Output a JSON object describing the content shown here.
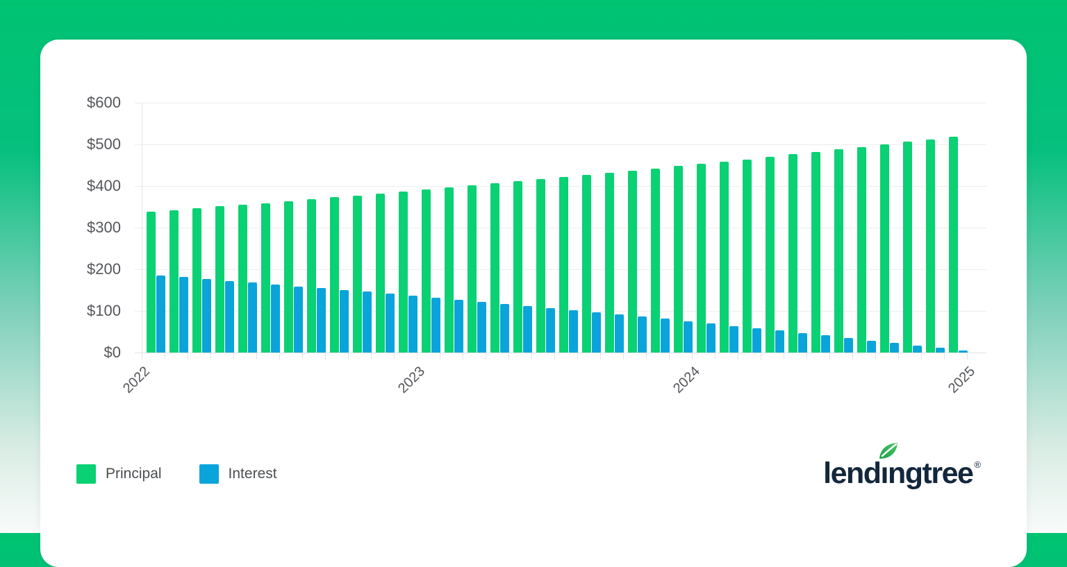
{
  "page": {
    "background_top_color": "#00c372",
    "background_bottom_color": "#f9fbfa",
    "card_color": "#ffffff"
  },
  "chart_data": {
    "type": "bar",
    "title": "",
    "x_months": [
      "2022-01",
      "2022-02",
      "2022-03",
      "2022-04",
      "2022-05",
      "2022-06",
      "2022-07",
      "2022-08",
      "2022-09",
      "2022-10",
      "2022-11",
      "2022-12",
      "2023-01",
      "2023-02",
      "2023-03",
      "2023-04",
      "2023-05",
      "2023-06",
      "2023-07",
      "2023-08",
      "2023-09",
      "2023-10",
      "2023-11",
      "2023-12",
      "2024-01",
      "2024-02",
      "2024-03",
      "2024-04",
      "2024-05",
      "2024-06",
      "2024-07",
      "2024-08",
      "2024-09",
      "2024-10",
      "2024-11",
      "2024-12"
    ],
    "year_tick_labels": [
      "2022",
      "2023",
      "2024",
      "2025"
    ],
    "y_tick_labels": [
      "$0",
      "$100",
      "$200",
      "$300",
      "$400",
      "$500",
      "$600"
    ],
    "ylim": [
      0,
      600
    ],
    "y_tick_step": 100,
    "grid": true,
    "legend_position": "bottom-left",
    "series": [
      {
        "name": "Principal",
        "color": "#0ad173",
        "values": [
          338,
          342,
          346,
          351,
          355,
          359,
          364,
          368,
          373,
          377,
          382,
          387,
          391,
          396,
          401,
          406,
          411,
          416,
          421,
          426,
          432,
          437,
          442,
          448,
          453,
          459,
          464,
          470,
          476,
          482,
          488,
          494,
          500,
          506,
          512,
          518
        ]
      },
      {
        "name": "Interest",
        "color": "#0aa4db",
        "values": [
          185,
          181,
          177,
          172,
          168,
          164,
          159,
          155,
          150,
          146,
          141,
          136,
          132,
          127,
          122,
          117,
          112,
          107,
          102,
          97,
          91,
          86,
          81,
          75,
          70,
          64,
          59,
          53,
          47,
          41,
          35,
          29,
          23,
          17,
          11,
          5
        ]
      }
    ]
  },
  "branding": {
    "logo_pre": "lend",
    "logo_i": "ı",
    "logo_post": "ngtree",
    "registered_mark": "®",
    "logo_color": "#13273c",
    "leaf_color": "#2eb457"
  }
}
